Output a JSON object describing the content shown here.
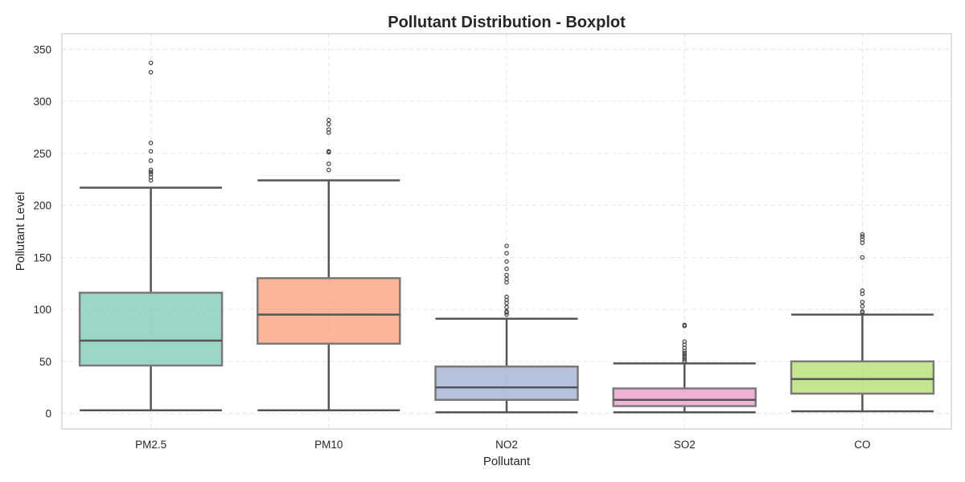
{
  "chart_data": {
    "type": "box",
    "title": "Pollutant Distribution - Boxplot",
    "xlabel": "Pollutant",
    "ylabel": "Pollutant Level",
    "ylim": [
      -15,
      365
    ],
    "yticks": [
      0,
      50,
      100,
      150,
      200,
      250,
      300,
      350
    ],
    "grid": true,
    "categories": [
      "PM2.5",
      "PM10",
      "NO2",
      "SO2",
      "CO"
    ],
    "series": [
      {
        "category": "PM2.5",
        "color": "#66c2a5",
        "whisker_low": 3,
        "q1": 46,
        "median": 70,
        "q3": 116,
        "whisker_high": 217,
        "outliers": [
          224,
          227,
          230,
          232,
          234,
          243,
          252,
          260,
          328,
          337
        ]
      },
      {
        "category": "PM10",
        "color": "#fc8d62",
        "whisker_low": 3,
        "q1": 67,
        "median": 95,
        "q3": 130,
        "whisker_high": 224,
        "outliers": [
          234,
          240,
          251,
          252,
          270,
          273,
          278,
          282
        ]
      },
      {
        "category": "NO2",
        "color": "#8da0cb",
        "whisker_low": 1,
        "q1": 13,
        "median": 25,
        "q3": 45,
        "whisker_high": 91,
        "outliers": [
          95,
          97,
          98,
          102,
          106,
          109,
          112,
          126,
          129,
          133,
          139,
          146,
          154,
          161
        ]
      },
      {
        "category": "SO2",
        "color": "#e78ac3",
        "whisker_low": 1,
        "q1": 7,
        "median": 13,
        "q3": 24,
        "whisker_high": 48,
        "outliers": [
          50,
          52,
          54,
          56,
          58,
          60,
          63,
          66,
          69,
          84,
          85
        ]
      },
      {
        "category": "CO",
        "color": "#a6d854",
        "whisker_low": 2,
        "q1": 19,
        "median": 33,
        "q3": 50,
        "whisker_high": 95,
        "outliers": [
          97,
          98,
          103,
          107,
          115,
          118,
          150,
          164,
          167,
          170,
          172
        ]
      }
    ]
  }
}
